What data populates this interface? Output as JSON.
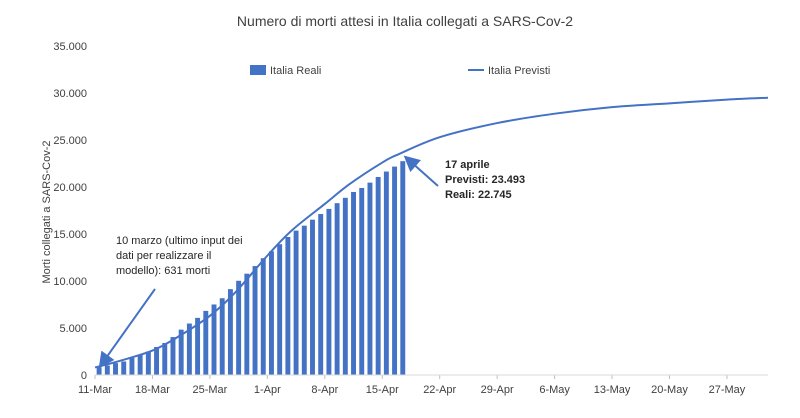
{
  "chart_data": {
    "type": "bar",
    "title": "Numero di morti attesi in Italia collegati a SARS-Cov-2",
    "ylabel": "Morti collegati a SARS-Cov-2",
    "xlabel": "",
    "ylim": [
      0,
      35000
    ],
    "yticks": [
      "0",
      "5.000",
      "10.000",
      "15.000",
      "20.000",
      "25.000",
      "30.000",
      "35.000"
    ],
    "ytick_values": [
      0,
      5000,
      10000,
      15000,
      20000,
      25000,
      30000,
      35000
    ],
    "x_start": "2020-03-11",
    "x_end": "2020-06-01",
    "xticks": [
      {
        "label": "11-Mar",
        "date": "2020-03-11"
      },
      {
        "label": "18-Mar",
        "date": "2020-03-18"
      },
      {
        "label": "25-Mar",
        "date": "2020-03-25"
      },
      {
        "label": "1-Apr",
        "date": "2020-04-01"
      },
      {
        "label": "8-Apr",
        "date": "2020-04-08"
      },
      {
        "label": "15-Apr",
        "date": "2020-04-15"
      },
      {
        "label": "22-Apr",
        "date": "2020-04-22"
      },
      {
        "label": "29-Apr",
        "date": "2020-04-29"
      },
      {
        "label": "6-May",
        "date": "2020-05-06"
      },
      {
        "label": "13-May",
        "date": "2020-05-13"
      },
      {
        "label": "20-May",
        "date": "2020-05-20"
      },
      {
        "label": "27-May",
        "date": "2020-05-27"
      }
    ],
    "legend_placement": "top",
    "grid": false,
    "series": [
      {
        "name": "Italia Reali",
        "type": "bar",
        "color": "#4472C4",
        "dates": [
          "2020-03-11",
          "2020-03-12",
          "2020-03-13",
          "2020-03-14",
          "2020-03-15",
          "2020-03-16",
          "2020-03-17",
          "2020-03-18",
          "2020-03-19",
          "2020-03-20",
          "2020-03-21",
          "2020-03-22",
          "2020-03-23",
          "2020-03-24",
          "2020-03-25",
          "2020-03-26",
          "2020-03-27",
          "2020-03-28",
          "2020-03-29",
          "2020-03-30",
          "2020-03-31",
          "2020-04-01",
          "2020-04-02",
          "2020-04-03",
          "2020-04-04",
          "2020-04-05",
          "2020-04-06",
          "2020-04-07",
          "2020-04-08",
          "2020-04-09",
          "2020-04-10",
          "2020-04-11",
          "2020-04-12",
          "2020-04-13",
          "2020-04-14",
          "2020-04-15",
          "2020-04-16",
          "2020-04-17"
        ],
        "values": [
          827,
          1016,
          1266,
          1441,
          1809,
          2158,
          2503,
          2978,
          3405,
          4032,
          4825,
          5476,
          6077,
          6820,
          7503,
          8165,
          9134,
          10023,
          10779,
          11591,
          12428,
          13155,
          13915,
          14681,
          15362,
          15887,
          16523,
          17127,
          17669,
          18279,
          18849,
          19468,
          19899,
          20465,
          21067,
          21645,
          22170,
          22745
        ]
      },
      {
        "name": "Italia Previsti",
        "type": "line",
        "color": "#4472C4",
        "dates": [
          "2020-03-11",
          "2020-03-14",
          "2020-03-18",
          "2020-03-21",
          "2020-03-25",
          "2020-03-28",
          "2020-04-01",
          "2020-04-04",
          "2020-04-08",
          "2020-04-11",
          "2020-04-15",
          "2020-04-17",
          "2020-04-22",
          "2020-04-29",
          "2020-05-06",
          "2020-05-13",
          "2020-05-20",
          "2020-05-27",
          "2020-06-01"
        ],
        "values": [
          800,
          1500,
          2600,
          4000,
          6300,
          8700,
          12700,
          15400,
          18200,
          20300,
          22600,
          23493,
          25300,
          26800,
          27800,
          28500,
          28900,
          29300,
          29500
        ]
      }
    ],
    "annotations": [
      {
        "lines": [
          "10 marzo (ultimo input dei",
          "dati per realizzare il",
          "modello): 631 morti"
        ],
        "bold": false,
        "x": "2020-03-11",
        "y": 631
      },
      {
        "lines": [
          "17 aprile",
          "Previsti: 23.493",
          "Reali: 22.745"
        ],
        "bold": true,
        "x": "2020-04-17",
        "y": 23493
      }
    ]
  }
}
